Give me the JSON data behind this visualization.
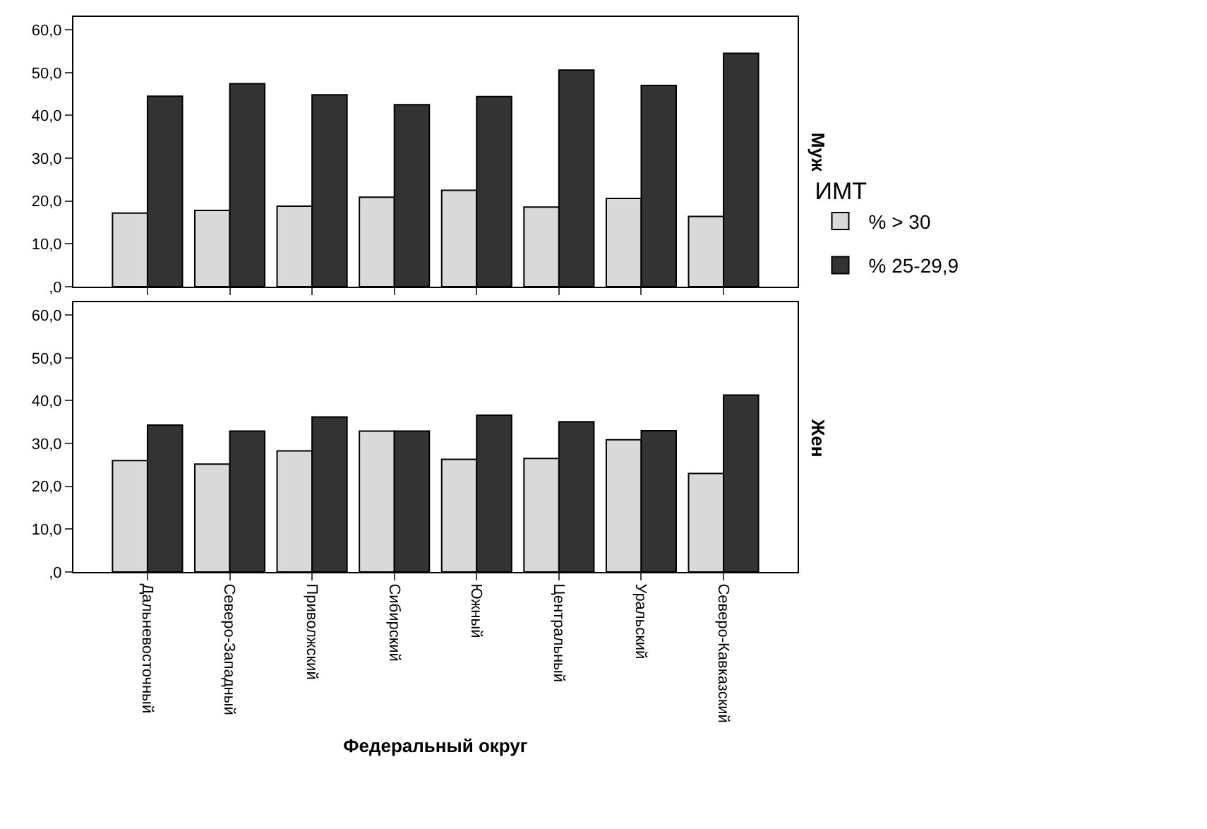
{
  "chart_data": [
    {
      "type": "bar",
      "title": "Муж",
      "legend_title": "ИМТ",
      "legend": "right",
      "tick_labels": "y",
      "categories": [
        "Дальневосточный",
        "Северо-Западный",
        "Приволжский",
        "Сибирский",
        "Южный",
        "Центральный",
        "Уральский",
        "Северо-Кавказский"
      ],
      "series": [
        {
          "name": "% > 30",
          "color": "#d9d9d9",
          "values": [
            17.2,
            17.8,
            18.8,
            20.9,
            22.5,
            18.6,
            20.6,
            16.4
          ]
        },
        {
          "name": "% 25-29,9",
          "color": "#333333",
          "values": [
            44.5,
            47.4,
            44.8,
            42.5,
            44.4,
            50.6,
            47.0,
            54.5
          ]
        }
      ],
      "ylim": [
        0,
        63
      ],
      "yticks": [
        {
          "value": 0,
          "label": ",0"
        },
        {
          "value": 10,
          "label": "10,0"
        },
        {
          "value": 20,
          "label": "20,0"
        },
        {
          "value": 30,
          "label": "30,0"
        },
        {
          "value": 40,
          "label": "40,0"
        },
        {
          "value": 50,
          "label": "50,0"
        },
        {
          "value": 60,
          "label": "60,0"
        }
      ]
    },
    {
      "type": "bar",
      "title": "Жен",
      "xlabel": "Федеральный округ",
      "categories": [
        "Дальневосточный",
        "Северо-Западный",
        "Приволжский",
        "Сибирский",
        "Южный",
        "Центральный",
        "Уральский",
        "Северо-Кавказский"
      ],
      "series": [
        {
          "color": "#d9d9d9",
          "values": [
            26.0,
            25.2,
            28.3,
            32.9,
            26.3,
            26.5,
            30.9,
            23.0
          ]
        },
        {
          "color": "#333333",
          "values": [
            34.3,
            32.9,
            36.2,
            32.9,
            36.6,
            35.1,
            33.0,
            41.3
          ]
        }
      ],
      "ylim": [
        0,
        63
      ],
      "yticks": [
        {
          "value": 0,
          "label": ",0"
        },
        {
          "value": 10,
          "label": "10,0"
        },
        {
          "value": 20,
          "label": "20,0"
        },
        {
          "value": 30,
          "label": "30,0"
        },
        {
          "value": 40,
          "label": "40,0"
        },
        {
          "value": 50,
          "label": "50,0"
        },
        {
          "value": 60,
          "label": "60,0"
        }
      ]
    }
  ]
}
